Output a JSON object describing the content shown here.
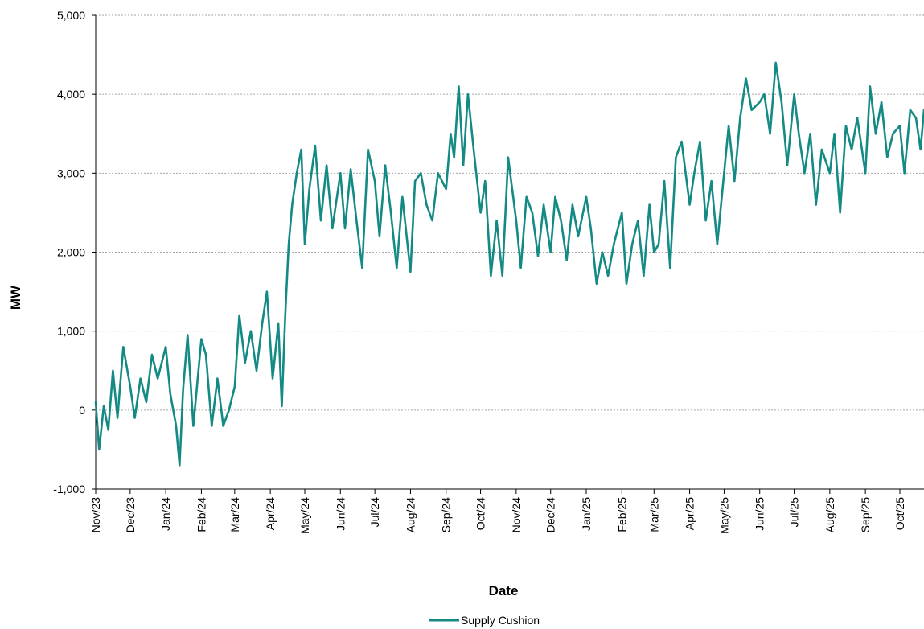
{
  "chart_data": {
    "type": "line",
    "title": "",
    "xlabel": "Date",
    "ylabel": "MW",
    "ylim": [
      -1000,
      5000
    ],
    "yticks": [
      -1000,
      0,
      1000,
      2000,
      3000,
      4000,
      5000
    ],
    "ytick_labels": [
      "-1,000",
      "0",
      "1,000",
      "2,000",
      "3,000",
      "4,000",
      "5,000"
    ],
    "xlim": [
      "2023-11-01",
      "2025-10-22"
    ],
    "xticks": [
      "2023-11-01",
      "2023-12-01",
      "2024-01-01",
      "2024-02-01",
      "2024-03-01",
      "2024-04-01",
      "2024-05-01",
      "2024-06-01",
      "2024-07-01",
      "2024-08-01",
      "2024-09-01",
      "2024-10-01",
      "2024-11-01",
      "2024-12-01",
      "2025-01-01",
      "2025-02-01",
      "2025-03-01",
      "2025-04-01",
      "2025-05-01",
      "2025-06-01",
      "2025-07-01",
      "2025-08-01",
      "2025-09-01",
      "2025-10-01"
    ],
    "xtick_labels": [
      "Nov/23",
      "Dec/23",
      "Jan/24",
      "Feb/24",
      "Mar/24",
      "Apr/24",
      "May/24",
      "Jun/24",
      "Jul/24",
      "Aug/24",
      "Sep/24",
      "Oct/24",
      "Nov/24",
      "Dec/24",
      "Jan/25",
      "Feb/25",
      "Mar/25",
      "Apr/25",
      "May/25",
      "Jun/25",
      "Jul/25",
      "Aug/25",
      "Sep/25",
      "Oct/25"
    ],
    "grid": "horizontal dashed",
    "legend": "bottom-center",
    "colors": {
      "series": "#138a84",
      "grid": "#a6a6a6",
      "axis": "#000000"
    },
    "series": [
      {
        "name": "Supply Cushion",
        "x": [
          "2023-11-01",
          "2023-11-04",
          "2023-11-08",
          "2023-11-12",
          "2023-11-16",
          "2023-11-20",
          "2023-11-25",
          "2023-12-01",
          "2023-12-05",
          "2023-12-10",
          "2023-12-15",
          "2023-12-20",
          "2023-12-25",
          "2024-01-01",
          "2024-01-05",
          "2024-01-10",
          "2024-01-13",
          "2024-01-16",
          "2024-01-20",
          "2024-01-25",
          "2024-02-01",
          "2024-02-05",
          "2024-02-10",
          "2024-02-15",
          "2024-02-20",
          "2024-02-25",
          "2024-03-01",
          "2024-03-05",
          "2024-03-10",
          "2024-03-15",
          "2024-03-20",
          "2024-03-25",
          "2024-03-29",
          "2024-04-03",
          "2024-04-08",
          "2024-04-11",
          "2024-04-14",
          "2024-04-17",
          "2024-04-20",
          "2024-04-24",
          "2024-04-28",
          "2024-05-01",
          "2024-05-05",
          "2024-05-10",
          "2024-05-15",
          "2024-05-20",
          "2024-05-25",
          "2024-06-01",
          "2024-06-05",
          "2024-06-10",
          "2024-06-15",
          "2024-06-20",
          "2024-06-25",
          "2024-07-01",
          "2024-07-05",
          "2024-07-10",
          "2024-07-15",
          "2024-07-20",
          "2024-07-25",
          "2024-08-01",
          "2024-08-05",
          "2024-08-10",
          "2024-08-15",
          "2024-08-20",
          "2024-08-25",
          "2024-09-01",
          "2024-09-05",
          "2024-09-08",
          "2024-09-12",
          "2024-09-16",
          "2024-09-20",
          "2024-09-25",
          "2024-10-01",
          "2024-10-05",
          "2024-10-10",
          "2024-10-15",
          "2024-10-20",
          "2024-10-25",
          "2024-11-01",
          "2024-11-05",
          "2024-11-10",
          "2024-11-15",
          "2024-11-20",
          "2024-11-25",
          "2024-12-01",
          "2024-12-05",
          "2024-12-10",
          "2024-12-15",
          "2024-12-20",
          "2024-12-25",
          "2025-01-01",
          "2025-01-05",
          "2025-01-10",
          "2025-01-15",
          "2025-01-20",
          "2025-01-25",
          "2025-02-01",
          "2025-02-05",
          "2025-02-10",
          "2025-02-15",
          "2025-02-20",
          "2025-02-25",
          "2025-03-01",
          "2025-03-05",
          "2025-03-10",
          "2025-03-15",
          "2025-03-20",
          "2025-03-25",
          "2025-04-01",
          "2025-04-05",
          "2025-04-10",
          "2025-04-15",
          "2025-04-20",
          "2025-04-25",
          "2025-05-01",
          "2025-05-05",
          "2025-05-10",
          "2025-05-15",
          "2025-05-20",
          "2025-05-25",
          "2025-06-01",
          "2025-06-05",
          "2025-06-10",
          "2025-06-15",
          "2025-06-20",
          "2025-06-25",
          "2025-07-01",
          "2025-07-05",
          "2025-07-10",
          "2025-07-15",
          "2025-07-20",
          "2025-07-25",
          "2025-08-01",
          "2025-08-05",
          "2025-08-10",
          "2025-08-15",
          "2025-08-20",
          "2025-08-25",
          "2025-09-01",
          "2025-09-05",
          "2025-09-10",
          "2025-09-15",
          "2025-09-20",
          "2025-09-25",
          "2025-10-01",
          "2025-10-05",
          "2025-10-10",
          "2025-10-15",
          "2025-10-19",
          "2025-10-22"
        ],
        "values": [
          100,
          -500,
          50,
          -250,
          500,
          -100,
          800,
          300,
          -100,
          400,
          100,
          700,
          400,
          800,
          200,
          -200,
          -700,
          250,
          950,
          -200,
          900,
          700,
          -200,
          400,
          -200,
          0,
          300,
          1200,
          600,
          1000,
          500,
          1100,
          1500,
          400,
          1100,
          50,
          1200,
          2100,
          2600,
          3000,
          3300,
          2100,
          2800,
          3350,
          2400,
          3100,
          2300,
          3000,
          2300,
          3050,
          2400,
          1800,
          3300,
          2900,
          2200,
          3100,
          2500,
          1800,
          2700,
          1750,
          2900,
          3000,
          2600,
          2400,
          3000,
          2800,
          3500,
          3200,
          4100,
          3100,
          4000,
          3300,
          2500,
          2900,
          1700,
          2400,
          1700,
          3200,
          2400,
          1800,
          2700,
          2500,
          1950,
          2600,
          2000,
          2700,
          2400,
          1900,
          2600,
          2200,
          2700,
          2300,
          1600,
          2000,
          1700,
          2100,
          2500,
          1600,
          2100,
          2400,
          1700,
          2600,
          2000,
          2100,
          2900,
          1800,
          3200,
          3400,
          2600,
          3000,
          3400,
          2400,
          2900,
          2100,
          3000,
          3600,
          2900,
          3700,
          4200,
          3800,
          3900,
          4000,
          3500,
          4400,
          3900,
          3100,
          4000,
          3500,
          3000,
          3500,
          2600,
          3300,
          3000,
          3500,
          2500,
          3600,
          3300,
          3700,
          3000,
          4100,
          3500,
          3900,
          3200,
          3500,
          3600,
          3000,
          3800,
          3700,
          3300,
          3800
        ]
      }
    ]
  }
}
